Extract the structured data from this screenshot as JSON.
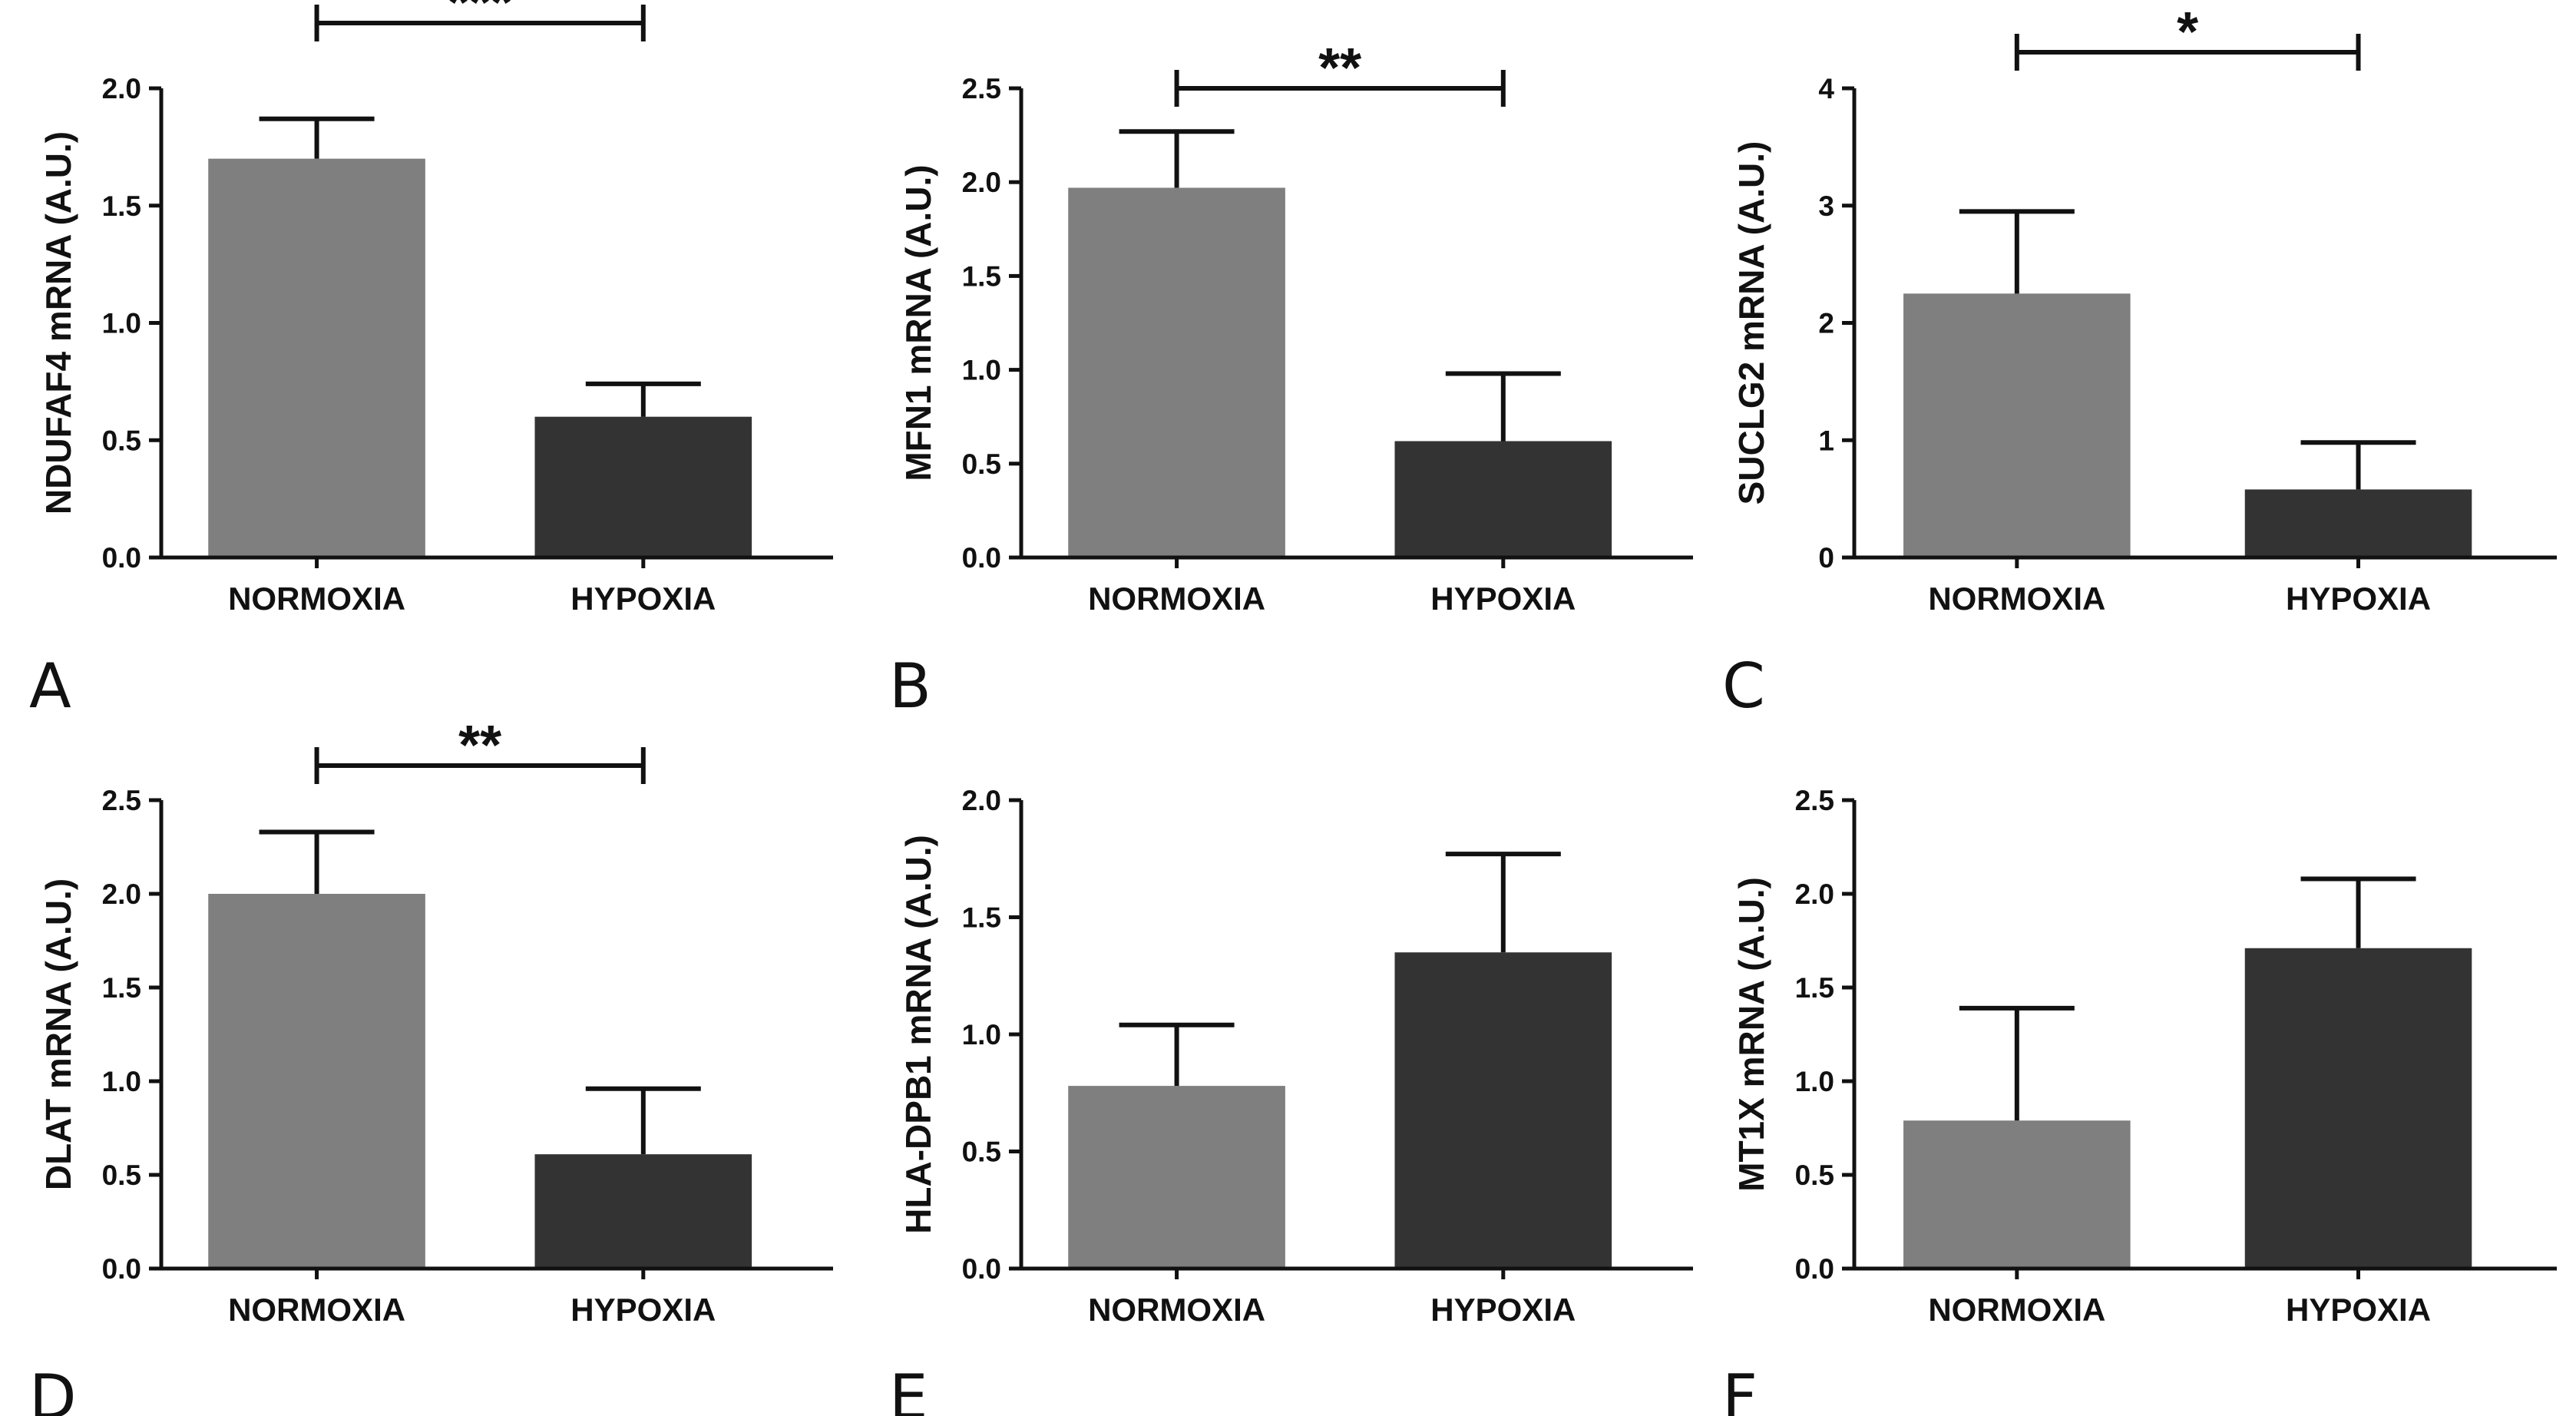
{
  "colors": {
    "normoxia": "#7f7f7f",
    "hypoxia": "#333333",
    "axis": "#111111"
  },
  "chart_data": [
    {
      "type": "bar",
      "panel": "A",
      "categories": [
        "NORMOXIA",
        "HYPOXIA"
      ],
      "values": [
        1.7,
        0.6
      ],
      "errors": [
        0.17,
        0.14
      ],
      "ylabel": "NDUFAF4 mRNA (A.U.)",
      "ylim": [
        0,
        2.0
      ],
      "yticks": [
        0.0,
        0.5,
        1.0,
        1.5,
        2.0
      ],
      "tick_labels": [
        "0.0",
        "0.5",
        "1.0",
        "1.5",
        "2.0"
      ],
      "significance": "***"
    },
    {
      "type": "bar",
      "panel": "B",
      "categories": [
        "NORMOXIA",
        "HYPOXIA"
      ],
      "values": [
        1.97,
        0.62
      ],
      "errors": [
        0.3,
        0.36
      ],
      "ylabel": "MFN1 mRNA (A.U.)",
      "ylim": [
        0,
        2.5
      ],
      "yticks": [
        0.0,
        0.5,
        1.0,
        1.5,
        2.0,
        2.5
      ],
      "tick_labels": [
        "0.0",
        "0.5",
        "1.0",
        "1.5",
        "2.0",
        "2.5"
      ],
      "significance": "**"
    },
    {
      "type": "bar",
      "panel": "C",
      "categories": [
        "NORMOXIA",
        "HYPOXIA"
      ],
      "values": [
        2.25,
        0.58
      ],
      "errors": [
        0.7,
        0.4
      ],
      "ylabel": "SUCLG2 mRNA (A.U.)",
      "ylim": [
        0,
        4
      ],
      "yticks": [
        0,
        1,
        2,
        3,
        4
      ],
      "tick_labels": [
        "0",
        "1",
        "2",
        "3",
        "4"
      ],
      "significance": "*"
    },
    {
      "type": "bar",
      "panel": "D",
      "categories": [
        "NORMOXIA",
        "HYPOXIA"
      ],
      "values": [
        2.0,
        0.61
      ],
      "errors": [
        0.33,
        0.35
      ],
      "ylabel": "DLAT mRNA (A.U.)",
      "ylim": [
        0,
        2.5
      ],
      "yticks": [
        0.0,
        0.5,
        1.0,
        1.5,
        2.0,
        2.5
      ],
      "tick_labels": [
        "0.0",
        "0.5",
        "1.0",
        "1.5",
        "2.0",
        "2.5"
      ],
      "significance": "**"
    },
    {
      "type": "bar",
      "panel": "E",
      "categories": [
        "NORMOXIA",
        "HYPOXIA"
      ],
      "values": [
        0.78,
        1.35
      ],
      "errors": [
        0.26,
        0.42
      ],
      "ylabel": "HLA-DPB1 mRNA (A.U.)",
      "ylim": [
        0,
        2.0
      ],
      "yticks": [
        0.0,
        0.5,
        1.0,
        1.5,
        2.0
      ],
      "tick_labels": [
        "0.0",
        "0.5",
        "1.0",
        "1.5",
        "2.0"
      ],
      "significance": ""
    },
    {
      "type": "bar",
      "panel": "F",
      "categories": [
        "NORMOXIA",
        "HYPOXIA"
      ],
      "values": [
        0.79,
        1.71
      ],
      "errors": [
        0.6,
        0.37
      ],
      "ylabel": "MT1X mRNA (A.U.)",
      "ylim": [
        0,
        2.5
      ],
      "yticks": [
        0.0,
        0.5,
        1.0,
        1.5,
        2.0,
        2.5
      ],
      "tick_labels": [
        "0.0",
        "0.5",
        "1.0",
        "1.5",
        "2.0",
        "2.5"
      ],
      "significance": ""
    }
  ]
}
